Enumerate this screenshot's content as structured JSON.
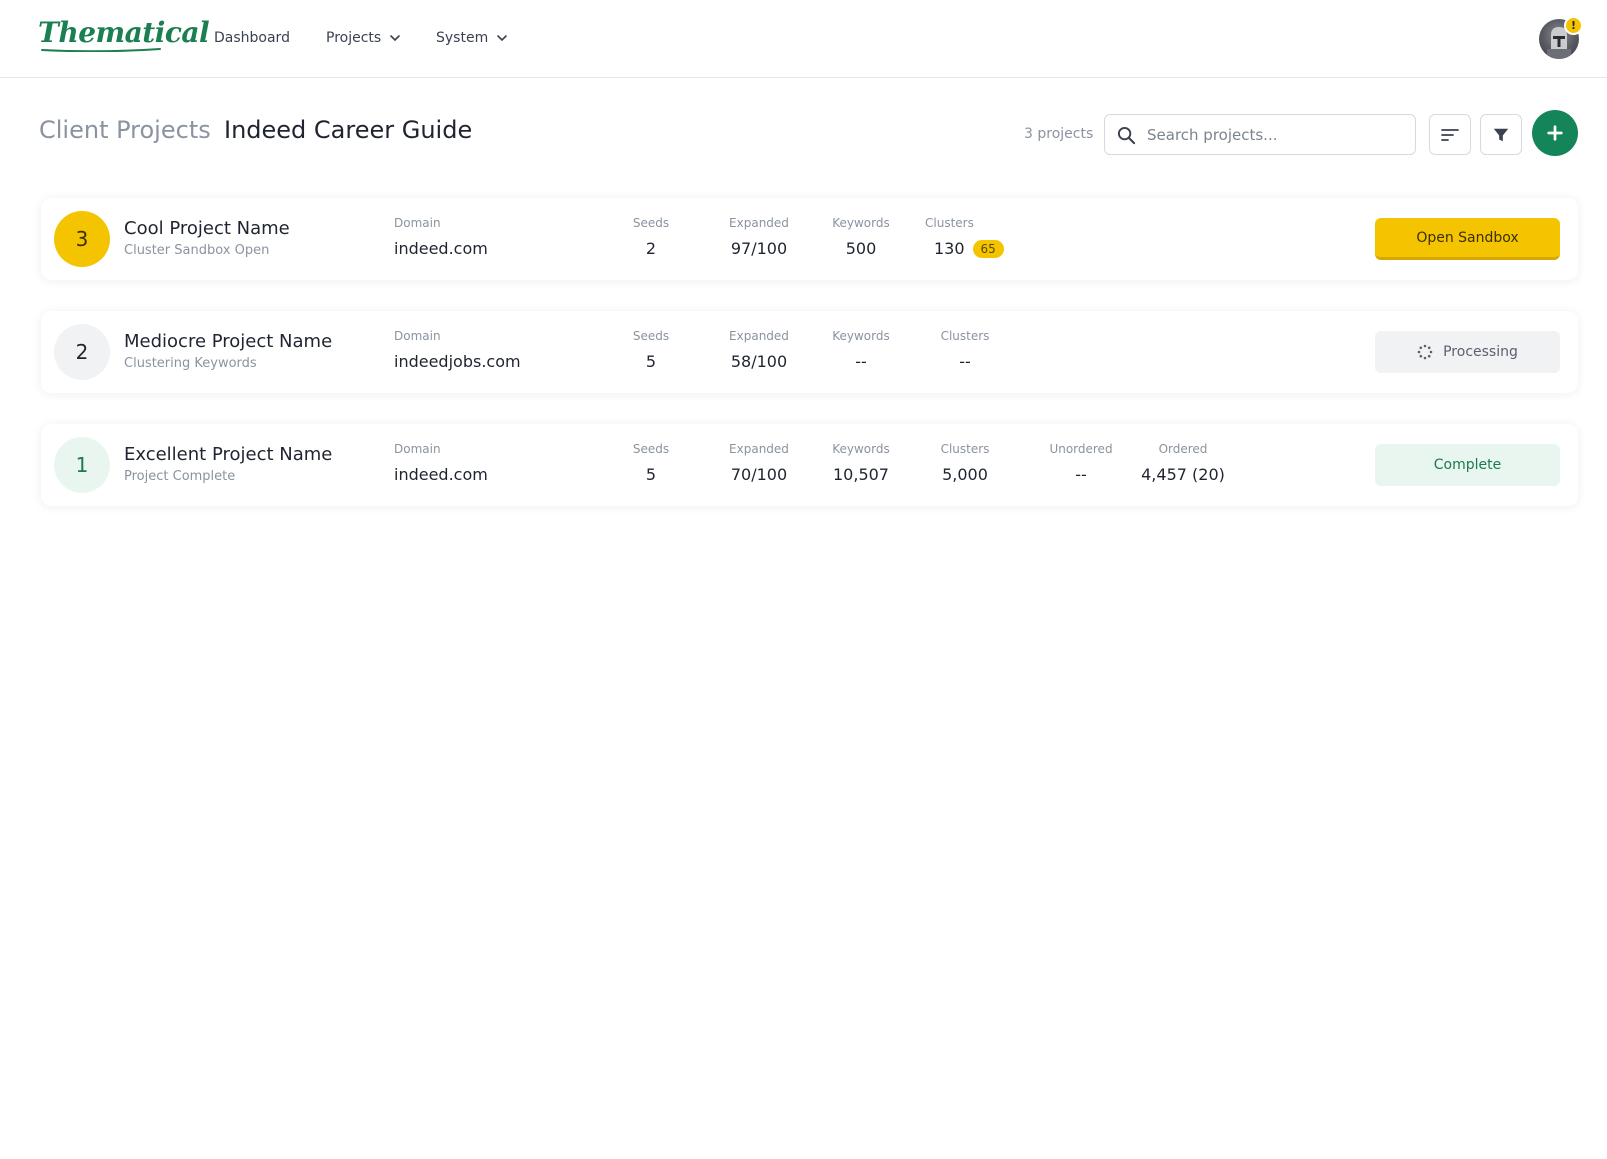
{
  "app": {
    "logo_text": "Thematical",
    "brand_color": "#1b7f52",
    "accent_color": "#f5c400"
  },
  "nav": {
    "items": [
      {
        "label": "Dashboard",
        "has_dropdown": false
      },
      {
        "label": "Projects",
        "has_dropdown": true
      },
      {
        "label": "System",
        "has_dropdown": true
      }
    ],
    "avatar_badge": "!"
  },
  "header": {
    "breadcrumb_parent": "Client Projects",
    "title": "Indeed Career Guide",
    "project_count": "3 projects",
    "search_placeholder": "Search projects...",
    "sort_icon": "sort-lines-icon",
    "filter_icon": "filter-funnel-icon",
    "add_icon": "plus-icon"
  },
  "projects": [
    {
      "rank": "3",
      "name": "Cool Project Name",
      "status": "Cluster Sandbox Open",
      "domain_label": "Domain",
      "domain": "indeed.com",
      "seeds_label": "Seeds",
      "seeds": "2",
      "expanded_label": "Expanded",
      "expanded": "97/100",
      "keywords_label": "Keywords",
      "keywords": "500",
      "clusters_label": "Clusters",
      "clusters": "130",
      "clusters_badge": "65",
      "action": "Open Sandbox"
    },
    {
      "rank": "2",
      "name": "Mediocre Project Name",
      "status": "Clustering Keywords",
      "domain_label": "Domain",
      "domain": "indeedjobs.com",
      "seeds_label": "Seeds",
      "seeds": "5",
      "expanded_label": "Expanded",
      "expanded": "58/100",
      "keywords_label": "Keywords",
      "keywords": "--",
      "clusters_label": "Clusters",
      "clusters": "--",
      "action": "Processing"
    },
    {
      "rank": "1",
      "name": "Excellent Project Name",
      "status": "Project Complete",
      "domain_label": "Domain",
      "domain": "indeed.com",
      "seeds_label": "Seeds",
      "seeds": "5",
      "expanded_label": "Expanded",
      "expanded": "70/100",
      "keywords_label": "Keywords",
      "keywords": "10,507",
      "clusters_label": "Clusters",
      "clusters": "5,000",
      "unordered_label": "Unordered",
      "unordered": "--",
      "ordered_label": "Ordered",
      "ordered": "4,457 (20)",
      "action": "Complete"
    }
  ]
}
